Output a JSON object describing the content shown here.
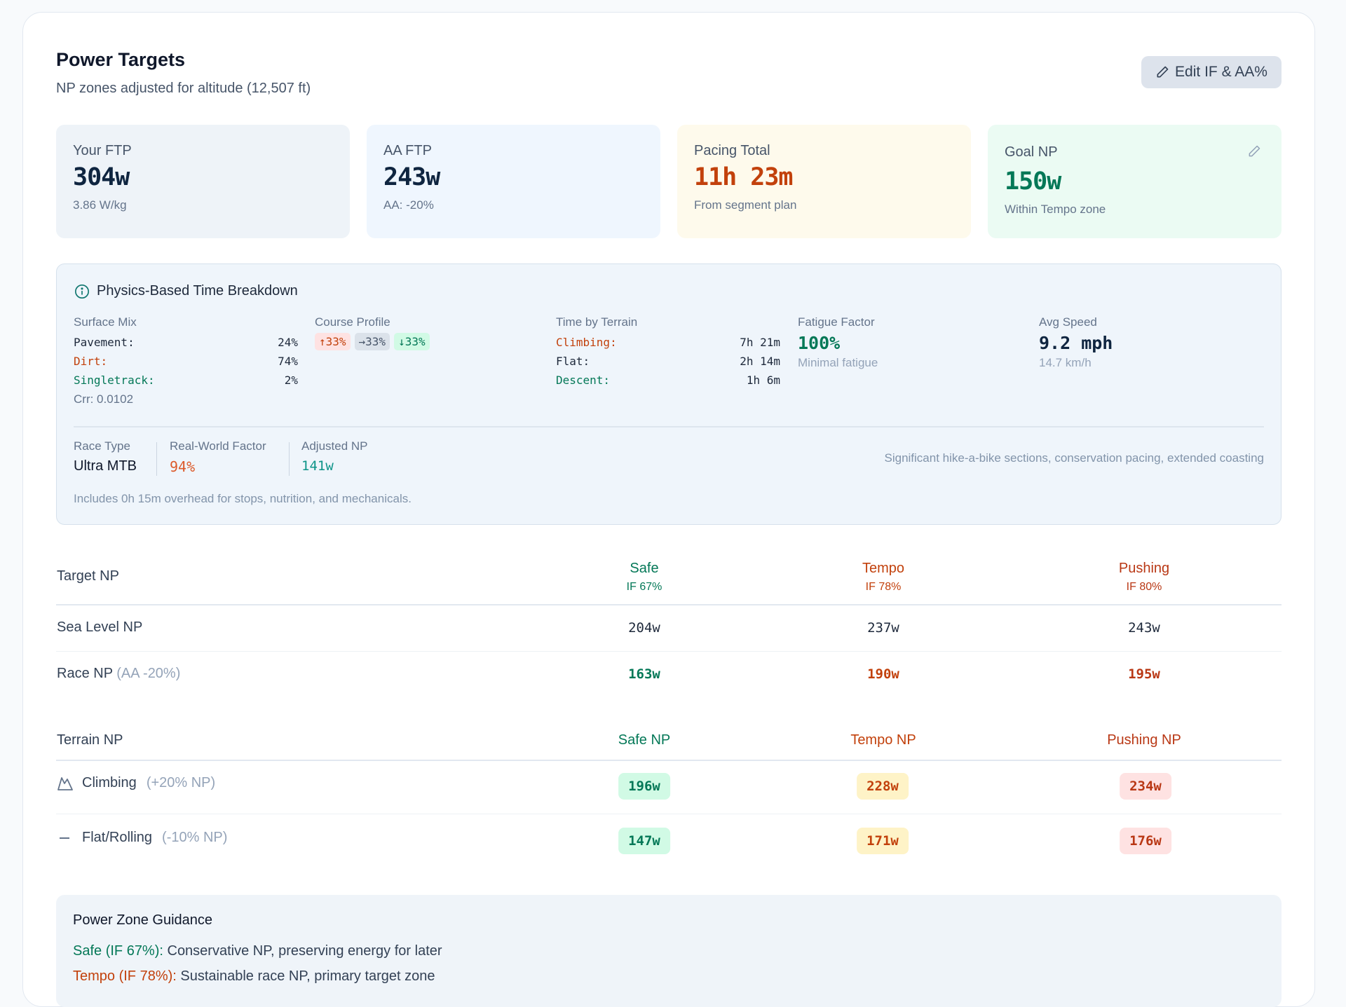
{
  "header": {
    "title": "Power Targets",
    "subtitle": "NP zones adjusted for altitude (12,507 ft)",
    "edit_button": "Edit IF & AA%"
  },
  "stats": [
    {
      "label": "Your FTP",
      "value": "304w",
      "sub": "3.86 W/kg",
      "bg": "#eef3f8",
      "color": "#0f2540"
    },
    {
      "label": "AA FTP",
      "value": "243w",
      "sub": "AA: -20%",
      "bg": "#eff6fe",
      "color": "#0f2540"
    },
    {
      "label": "Pacing Total",
      "value": "11h 23m",
      "sub": "From segment plan",
      "bg": "#fefaec",
      "color": "#c2410c"
    },
    {
      "label": "Goal NP",
      "value": "150w",
      "sub": "Within Tempo zone",
      "bg": "#ebfbf3",
      "color": "#047857"
    }
  ],
  "physics": {
    "title": "Physics-Based Time Breakdown",
    "surface": {
      "label": "Surface Mix",
      "rows": [
        {
          "k": "Pavement:",
          "v": "24%"
        },
        {
          "k": "Dirt:",
          "v": "74%"
        },
        {
          "k": "Singletrack:",
          "v": "2%"
        }
      ],
      "crr": "Crr: 0.0102"
    },
    "profile": {
      "label": "Course Profile",
      "chips": [
        "↑33%",
        "→33%",
        "↓33%"
      ]
    },
    "terrain": {
      "label": "Time by Terrain",
      "rows": [
        {
          "k": "Climbing:",
          "v": "7h 21m"
        },
        {
          "k": "Flat:",
          "v": "2h 14m"
        },
        {
          "k": "Descent:",
          "v": "1h 6m"
        }
      ]
    },
    "fatigue": {
      "label": "Fatigue Factor",
      "value": "100%",
      "sub": "Minimal fatigue"
    },
    "speed": {
      "label": "Avg Speed",
      "value": "9.2 mph",
      "sub": "14.7 km/h"
    },
    "race_type": {
      "label": "Race Type",
      "value": "Ultra MTB"
    },
    "rwf": {
      "label": "Real-World Factor",
      "value": "94%"
    },
    "adj_np": {
      "label": "Adjusted NP",
      "value": "141w"
    },
    "note": "Significant hike-a-bike sections, conservation pacing, extended coasting",
    "footnote": "Includes 0h 15m overhead for stops, nutrition, and mechanicals."
  },
  "target": {
    "header": "Target NP",
    "columns": [
      {
        "name": "Safe",
        "if": "IF 67%"
      },
      {
        "name": "Tempo",
        "if": "IF 78%"
      },
      {
        "name": "Pushing",
        "if": "IF 80%"
      }
    ],
    "rows": [
      {
        "label": "Sea Level NP",
        "note": "",
        "values": [
          "204w",
          "237w",
          "243w"
        ]
      },
      {
        "label": "Race NP",
        "note": "(AA -20%)",
        "values": [
          "163w",
          "190w",
          "195w"
        ]
      }
    ]
  },
  "terrain_np": {
    "header": "Terrain NP",
    "columns": [
      "Safe NP",
      "Tempo NP",
      "Pushing NP"
    ],
    "rows": [
      {
        "icon": "mountain-icon",
        "label": "Climbing",
        "note": "(+20% NP)",
        "values": [
          "196w",
          "228w",
          "234w"
        ]
      },
      {
        "icon": "dash-icon",
        "label": "Flat/Rolling",
        "note": "(-10% NP)",
        "values": [
          "147w",
          "171w",
          "176w"
        ]
      }
    ]
  },
  "guidance": {
    "title": "Power Zone Guidance",
    "lines": [
      {
        "zone": "Safe (IF 67%):",
        "text": " Conservative NP, preserving energy for later"
      },
      {
        "zone": "Tempo (IF 78%):",
        "text": " Sustainable race NP, primary target zone"
      }
    ]
  },
  "colors": {
    "safe": "#047857",
    "tempo": "#c2410c",
    "pushing": "#b93815",
    "safe_bg": "#d1fae5",
    "tempo_bg": "#fef3c7",
    "pushing_bg": "#fee2e2"
  }
}
